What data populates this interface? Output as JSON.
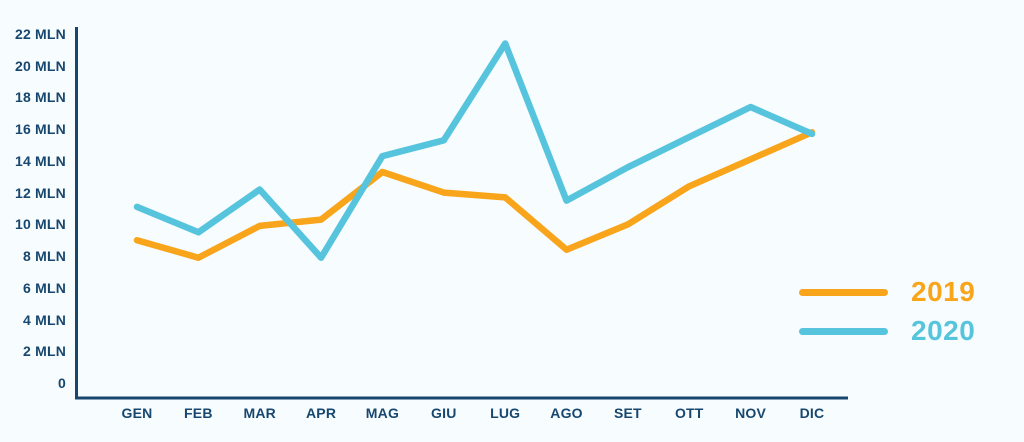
{
  "chart_data": {
    "type": "line",
    "categories": [
      "GEN",
      "FEB",
      "MAR",
      "APR",
      "MAG",
      "GIU",
      "LUG",
      "AGO",
      "SET",
      "OTT",
      "NOV",
      "DIC"
    ],
    "series": [
      {
        "name": "2019",
        "color": "#f9a51b",
        "values": [
          9.0,
          7.9,
          9.9,
          10.3,
          13.3,
          12.0,
          11.7,
          8.4,
          10.0,
          12.4,
          14.1,
          15.8
        ]
      },
      {
        "name": "2020",
        "color": "#56c4dd",
        "values": [
          11.1,
          9.5,
          12.2,
          7.9,
          14.3,
          15.3,
          21.4,
          11.5,
          13.6,
          15.5,
          17.4,
          15.7
        ]
      }
    ],
    "title": "",
    "xlabel": "",
    "ylabel": "",
    "ylim": [
      0,
      22
    ],
    "y_tick_step": 2,
    "y_tick_labels": [
      "0",
      "2 MLN",
      "4 MLN",
      "6 MLN",
      "8 MLN",
      "10 MLN",
      "12 MLN",
      "14 MLN",
      "16 MLN",
      "18 MLN",
      "20 MLN",
      "22 MLN"
    ],
    "grid": false,
    "legend_position": "right",
    "axis_color": "#17476e",
    "background_color": "#f7fcfe"
  }
}
